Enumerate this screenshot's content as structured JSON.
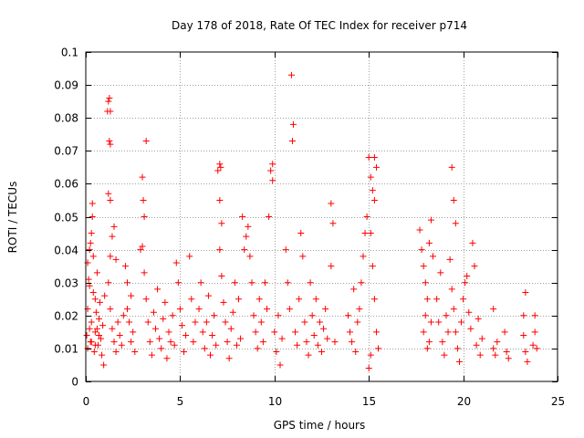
{
  "chart_data": {
    "type": "scatter",
    "title": "Day 178 of 2018, Rate Of TEC Index for receiver p714",
    "xlabel": "GPS time / hours",
    "ylabel": "ROTI / TECUs",
    "xlim": [
      0,
      25
    ],
    "ylim": [
      0,
      0.1
    ],
    "grid": true,
    "marker": "plus",
    "color": "#ff0000",
    "x_ticks": [
      0,
      5,
      10,
      15,
      20,
      25
    ],
    "x_tick_labels": [
      "0",
      "5",
      "10",
      "15",
      "20",
      "25"
    ],
    "y_ticks": [
      0,
      0.01,
      0.02,
      0.03,
      0.04,
      0.05,
      0.06,
      0.07,
      0.08,
      0.09,
      0.1
    ],
    "y_tick_labels": [
      "0",
      "0.01",
      "0.02",
      "0.03",
      "0.04",
      "0.05",
      "0.06",
      "0.07",
      "0.08",
      "0.09",
      "0.1"
    ],
    "series": [
      {
        "name": "ROTI",
        "points": [
          [
            0.05,
            0.014
          ],
          [
            0.1,
            0.022
          ],
          [
            0.15,
            0.031
          ],
          [
            0.2,
            0.04
          ],
          [
            0.25,
            0.012
          ],
          [
            0.3,
            0.018
          ],
          [
            0.35,
            0.054
          ],
          [
            0.4,
            0.027
          ],
          [
            0.45,
            0.009
          ],
          [
            0.5,
            0.015
          ],
          [
            0.55,
            0.021
          ],
          [
            0.6,
            0.033
          ],
          [
            0.65,
            0.011
          ],
          [
            0.7,
            0.019
          ],
          [
            0.75,
            0.024
          ],
          [
            0.8,
            0.013
          ],
          [
            0.85,
            0.008
          ],
          [
            0.9,
            0.017
          ],
          [
            0.95,
            0.005
          ],
          [
            1.0,
            0.026
          ],
          [
            0.1,
            0.036
          ],
          [
            0.2,
            0.029
          ],
          [
            0.3,
            0.045
          ],
          [
            0.4,
            0.038
          ],
          [
            0.5,
            0.025
          ],
          [
            0.6,
            0.016
          ],
          [
            0.2,
            0.016
          ],
          [
            0.3,
            0.012
          ],
          [
            0.5,
            0.011
          ],
          [
            0.7,
            0.014
          ],
          [
            0.1,
            0.01
          ],
          [
            0.35,
            0.05
          ],
          [
            0.25,
            0.042
          ],
          [
            1.15,
            0.082
          ],
          [
            1.2,
            0.085
          ],
          [
            1.25,
            0.086
          ],
          [
            1.3,
            0.082
          ],
          [
            1.25,
            0.073
          ],
          [
            1.3,
            0.072
          ],
          [
            1.2,
            0.057
          ],
          [
            1.3,
            0.055
          ],
          [
            1.4,
            0.044
          ],
          [
            1.5,
            0.047
          ],
          [
            1.2,
            0.03
          ],
          [
            1.3,
            0.022
          ],
          [
            1.4,
            0.016
          ],
          [
            1.5,
            0.012
          ],
          [
            1.6,
            0.009
          ],
          [
            1.7,
            0.018
          ],
          [
            1.8,
            0.014
          ],
          [
            1.9,
            0.011
          ],
          [
            2.0,
            0.02
          ],
          [
            1.6,
            0.037
          ],
          [
            1.3,
            0.038
          ],
          [
            2.1,
            0.035
          ],
          [
            2.2,
            0.03
          ],
          [
            2.3,
            0.018
          ],
          [
            2.4,
            0.012
          ],
          [
            2.5,
            0.015
          ],
          [
            2.6,
            0.009
          ],
          [
            2.2,
            0.022
          ],
          [
            2.4,
            0.026
          ],
          [
            2.9,
            0.04
          ],
          [
            3.0,
            0.062
          ],
          [
            3.05,
            0.055
          ],
          [
            3.1,
            0.05
          ],
          [
            3.2,
            0.073
          ],
          [
            3.0,
            0.041
          ],
          [
            3.1,
            0.033
          ],
          [
            3.2,
            0.025
          ],
          [
            3.3,
            0.018
          ],
          [
            3.4,
            0.012
          ],
          [
            3.5,
            0.008
          ],
          [
            3.6,
            0.021
          ],
          [
            3.7,
            0.016
          ],
          [
            3.8,
            0.028
          ],
          [
            3.9,
            0.013
          ],
          [
            4.0,
            0.01
          ],
          [
            4.1,
            0.019
          ],
          [
            4.2,
            0.024
          ],
          [
            4.3,
            0.007
          ],
          [
            4.4,
            0.015
          ],
          [
            4.5,
            0.012
          ],
          [
            4.6,
            0.02
          ],
          [
            4.7,
            0.011
          ],
          [
            4.8,
            0.036
          ],
          [
            4.9,
            0.03
          ],
          [
            5.0,
            0.022
          ],
          [
            5.1,
            0.017
          ],
          [
            5.2,
            0.009
          ],
          [
            5.3,
            0.014
          ],
          [
            5.5,
            0.038
          ],
          [
            5.6,
            0.025
          ],
          [
            5.7,
            0.012
          ],
          [
            5.8,
            0.018
          ],
          [
            6.0,
            0.022
          ],
          [
            6.1,
            0.03
          ],
          [
            6.2,
            0.015
          ],
          [
            6.3,
            0.01
          ],
          [
            6.4,
            0.018
          ],
          [
            6.5,
            0.026
          ],
          [
            6.6,
            0.008
          ],
          [
            6.7,
            0.014
          ],
          [
            6.8,
            0.02
          ],
          [
            6.9,
            0.011
          ],
          [
            7.0,
            0.064
          ],
          [
            7.1,
            0.066
          ],
          [
            7.15,
            0.065
          ],
          [
            7.1,
            0.055
          ],
          [
            7.2,
            0.048
          ],
          [
            7.1,
            0.04
          ],
          [
            7.2,
            0.032
          ],
          [
            7.3,
            0.024
          ],
          [
            7.4,
            0.018
          ],
          [
            7.5,
            0.012
          ],
          [
            7.6,
            0.007
          ],
          [
            7.7,
            0.016
          ],
          [
            7.8,
            0.021
          ],
          [
            7.9,
            0.03
          ],
          [
            8.0,
            0.011
          ],
          [
            8.1,
            0.025
          ],
          [
            8.2,
            0.013
          ],
          [
            8.3,
            0.05
          ],
          [
            8.4,
            0.04
          ],
          [
            8.5,
            0.044
          ],
          [
            8.6,
            0.047
          ],
          [
            8.7,
            0.038
          ],
          [
            8.8,
            0.03
          ],
          [
            8.9,
            0.02
          ],
          [
            9.0,
            0.015
          ],
          [
            9.1,
            0.01
          ],
          [
            9.2,
            0.025
          ],
          [
            9.3,
            0.018
          ],
          [
            9.4,
            0.012
          ],
          [
            9.5,
            0.03
          ],
          [
            9.6,
            0.022
          ],
          [
            9.7,
            0.05
          ],
          [
            9.8,
            0.064
          ],
          [
            9.9,
            0.066
          ],
          [
            9.9,
            0.061
          ],
          [
            10.0,
            0.015
          ],
          [
            10.1,
            0.009
          ],
          [
            10.2,
            0.02
          ],
          [
            10.3,
            0.005
          ],
          [
            10.4,
            0.013
          ],
          [
            10.6,
            0.04
          ],
          [
            10.7,
            0.03
          ],
          [
            10.8,
            0.022
          ],
          [
            10.9,
            0.093
          ],
          [
            11.0,
            0.078
          ],
          [
            10.95,
            0.073
          ],
          [
            11.1,
            0.015
          ],
          [
            11.2,
            0.011
          ],
          [
            11.3,
            0.025
          ],
          [
            11.4,
            0.045
          ],
          [
            11.5,
            0.038
          ],
          [
            11.6,
            0.018
          ],
          [
            11.7,
            0.012
          ],
          [
            11.8,
            0.008
          ],
          [
            11.9,
            0.03
          ],
          [
            12.0,
            0.02
          ],
          [
            12.1,
            0.014
          ],
          [
            12.2,
            0.025
          ],
          [
            12.3,
            0.011
          ],
          [
            12.4,
            0.018
          ],
          [
            12.5,
            0.009
          ],
          [
            12.6,
            0.016
          ],
          [
            12.7,
            0.022
          ],
          [
            12.8,
            0.013
          ],
          [
            13.0,
            0.035
          ],
          [
            13.0,
            0.054
          ],
          [
            13.1,
            0.048
          ],
          [
            13.2,
            0.012
          ],
          [
            13.9,
            0.02
          ],
          [
            14.0,
            0.015
          ],
          [
            14.1,
            0.012
          ],
          [
            14.2,
            0.028
          ],
          [
            14.3,
            0.009
          ],
          [
            14.4,
            0.018
          ],
          [
            14.5,
            0.022
          ],
          [
            14.6,
            0.03
          ],
          [
            14.7,
            0.038
          ],
          [
            14.8,
            0.045
          ],
          [
            14.9,
            0.05
          ],
          [
            15.0,
            0.068
          ],
          [
            15.1,
            0.062
          ],
          [
            15.2,
            0.058
          ],
          [
            15.3,
            0.055
          ],
          [
            15.1,
            0.045
          ],
          [
            15.2,
            0.035
          ],
          [
            15.3,
            0.025
          ],
          [
            15.4,
            0.015
          ],
          [
            15.5,
            0.01
          ],
          [
            15.1,
            0.008
          ],
          [
            15.0,
            0.004
          ],
          [
            15.3,
            0.068
          ],
          [
            15.4,
            0.065
          ],
          [
            17.7,
            0.046
          ],
          [
            17.8,
            0.04
          ],
          [
            17.9,
            0.035
          ],
          [
            18.0,
            0.03
          ],
          [
            18.1,
            0.025
          ],
          [
            18.2,
            0.042
          ],
          [
            18.3,
            0.049
          ],
          [
            18.4,
            0.038
          ],
          [
            18.0,
            0.02
          ],
          [
            17.9,
            0.015
          ],
          [
            18.1,
            0.01
          ],
          [
            18.2,
            0.012
          ],
          [
            18.3,
            0.018
          ],
          [
            18.6,
            0.025
          ],
          [
            18.7,
            0.018
          ],
          [
            18.8,
            0.033
          ],
          [
            18.9,
            0.012
          ],
          [
            19.0,
            0.008
          ],
          [
            19.1,
            0.02
          ],
          [
            19.2,
            0.015
          ],
          [
            19.3,
            0.037
          ],
          [
            19.4,
            0.065
          ],
          [
            19.5,
            0.055
          ],
          [
            19.6,
            0.048
          ],
          [
            19.4,
            0.028
          ],
          [
            19.5,
            0.022
          ],
          [
            19.6,
            0.015
          ],
          [
            19.7,
            0.01
          ],
          [
            19.8,
            0.006
          ],
          [
            19.9,
            0.018
          ],
          [
            20.0,
            0.025
          ],
          [
            20.1,
            0.03
          ],
          [
            20.2,
            0.032
          ],
          [
            20.3,
            0.021
          ],
          [
            20.4,
            0.016
          ],
          [
            20.5,
            0.042
          ],
          [
            20.6,
            0.035
          ],
          [
            20.7,
            0.011
          ],
          [
            20.8,
            0.019
          ],
          [
            20.9,
            0.008
          ],
          [
            21.0,
            0.013
          ],
          [
            21.6,
            0.01
          ],
          [
            21.7,
            0.008
          ],
          [
            21.8,
            0.012
          ],
          [
            21.6,
            0.022
          ],
          [
            22.2,
            0.015
          ],
          [
            22.3,
            0.009
          ],
          [
            22.4,
            0.007
          ],
          [
            23.2,
            0.02
          ],
          [
            23.3,
            0.027
          ],
          [
            23.2,
            0.014
          ],
          [
            23.3,
            0.009
          ],
          [
            23.4,
            0.006
          ],
          [
            23.7,
            0.011
          ],
          [
            23.8,
            0.02
          ],
          [
            23.9,
            0.01
          ],
          [
            23.8,
            0.015
          ]
        ]
      }
    ]
  }
}
